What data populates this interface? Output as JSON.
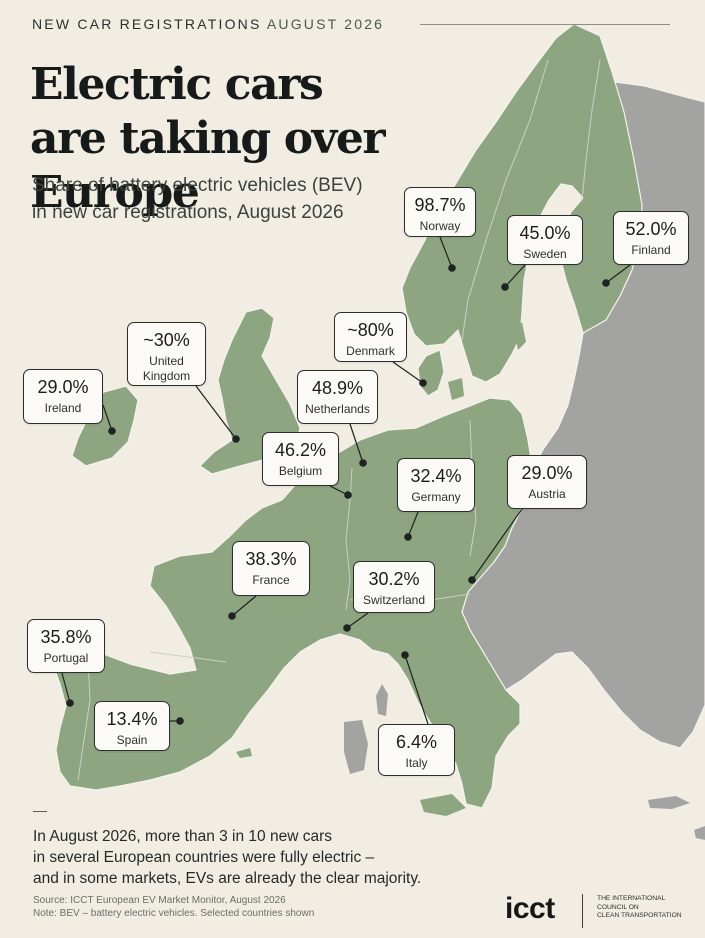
{
  "header": {
    "kicker": "NEW CAR REGISTRATIONS",
    "kicker_highlight": "AUGUST 2026",
    "title_line1": "Electric cars",
    "title_line2": "are taking over Europe",
    "subtitle_line1": "Share of battery electric vehicles (BEV)",
    "subtitle_line2": "in new car registrations, August 2026"
  },
  "colors": {
    "background": "#f1ede3",
    "highlighted_countries": "#8ea581",
    "other_countries": "#a3a3a1",
    "sea": "#f1ede3"
  },
  "callouts": [
    {
      "id": "norway",
      "value": "98.7%",
      "name_lines": [
        "Norway"
      ]
    },
    {
      "id": "sweden",
      "value": "45.0%",
      "name_lines": [
        "Sweden"
      ]
    },
    {
      "id": "finland",
      "value": "52.0%",
      "name_lines": [
        "Finland"
      ]
    },
    {
      "id": "uk",
      "value": "~30%",
      "name_lines": [
        "United",
        "Kingdom"
      ]
    },
    {
      "id": "denmark",
      "value": "~80%",
      "name_lines": [
        "Denmark"
      ]
    },
    {
      "id": "ireland",
      "value": "29.0%",
      "name_lines": [
        "Ireland"
      ]
    },
    {
      "id": "netherlands",
      "value": "48.9%",
      "name_lines": [
        "Netherlands"
      ]
    },
    {
      "id": "belgium",
      "value": "46.2%",
      "name_lines": [
        "Belgium"
      ]
    },
    {
      "id": "germany",
      "value": "32.4%",
      "name_lines": [
        "Germany"
      ]
    },
    {
      "id": "austria",
      "value": "29.0%",
      "name_lines": [
        "Austria"
      ]
    },
    {
      "id": "france",
      "value": "38.3%",
      "name_lines": [
        "France"
      ]
    },
    {
      "id": "switzerland",
      "value": "30.2%",
      "name_lines": [
        "Switzerland"
      ]
    },
    {
      "id": "portugal",
      "value": "35.8%",
      "name_lines": [
        "Portugal"
      ]
    },
    {
      "id": "spain",
      "value": "13.4%",
      "name_lines": [
        "Spain"
      ]
    },
    {
      "id": "italy",
      "value": "6.4%",
      "name_lines": [
        "Italy"
      ]
    }
  ],
  "footer": {
    "note_lines": [
      "In August 2026, more than 3 in 10 new cars",
      "in several European countries were fully electric –",
      "and in some markets, EVs are already the clear majority."
    ],
    "source_line1": "Source: ICCT European EV Market Monitor, August 2026",
    "source_line2": "Note: BEV – battery electric vehicles. Selected countries shown",
    "logo_text": "icct",
    "org_lines": [
      "THE INTERNATIONAL",
      "COUNCIL ON",
      "CLEAN TRANSPORTATION"
    ]
  }
}
